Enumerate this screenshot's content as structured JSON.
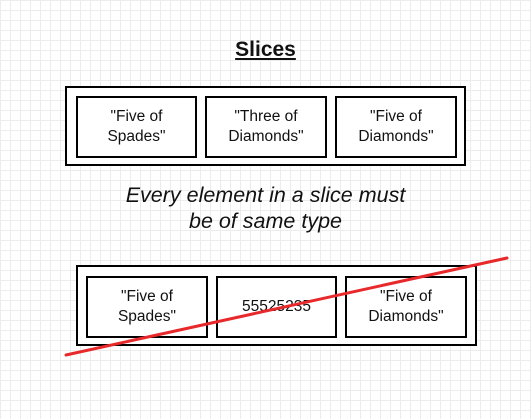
{
  "title": "Slices",
  "top_slice": {
    "elements": [
      "\"Five of\nSpades\"",
      "\"Three of\nDiamonds\"",
      "\"Five of\nDiamonds\""
    ]
  },
  "caption": "Every element in a slice must\nbe of same type",
  "bottom_slice": {
    "elements": [
      "\"Five of\nSpades\"",
      "55525235",
      "\"Five of\nDiamonds\""
    ]
  },
  "colors": {
    "strike_line": "#e8292b",
    "border": "#000000"
  }
}
